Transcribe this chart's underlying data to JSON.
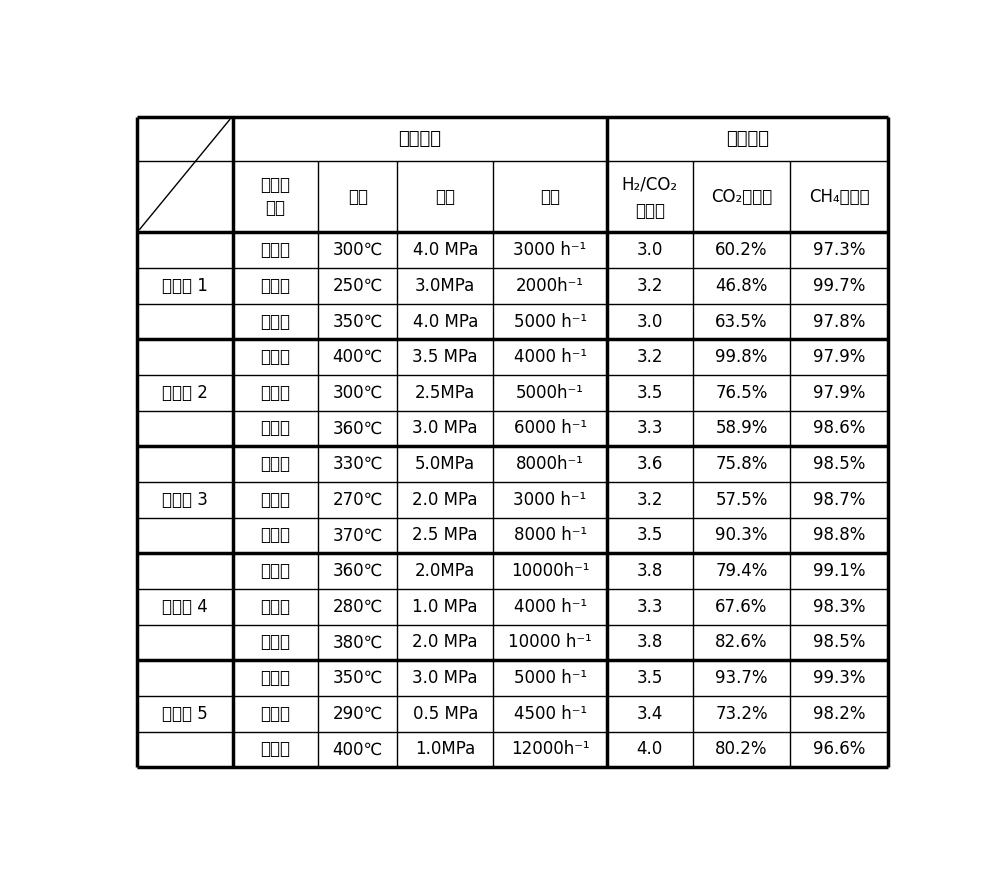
{
  "examples": [
    {
      "name": "实施例 1",
      "rows": [
        [
          "固定床",
          "300℃",
          "4.0 MPa",
          "3000 h⁻¹",
          "3.0",
          "60.2%",
          "97.3%"
        ],
        [
          "浆态床",
          "250℃",
          "3.0MPa",
          "2000h⁻¹",
          "3.2",
          "46.8%",
          "99.7%"
        ],
        [
          "流化床",
          "350℃",
          "4.0 MPa",
          "5000 h⁻¹",
          "3.0",
          "63.5%",
          "97.8%"
        ]
      ]
    },
    {
      "name": "实施例 2",
      "rows": [
        [
          "固定床",
          "400℃",
          "3.5 MPa",
          "4000 h⁻¹",
          "3.2",
          "99.8%",
          "97.9%"
        ],
        [
          "浆态床",
          "300℃",
          "2.5MPa",
          "5000h⁻¹",
          "3.5",
          "76.5%",
          "97.9%"
        ],
        [
          "流化床",
          "360℃",
          "3.0 MPa",
          "6000 h⁻¹",
          "3.3",
          "58.9%",
          "98.6%"
        ]
      ]
    },
    {
      "name": "实施例 3",
      "rows": [
        [
          "固定床",
          "330℃",
          "5.0MPa",
          "8000h⁻¹",
          "3.6",
          "75.8%",
          "98.5%"
        ],
        [
          "浆态床",
          "270℃",
          "2.0 MPa",
          "3000 h⁻¹",
          "3.2",
          "57.5%",
          "98.7%"
        ],
        [
          "流化床",
          "370℃",
          "2.5 MPa",
          "8000 h⁻¹",
          "3.5",
          "90.3%",
          "98.8%"
        ]
      ]
    },
    {
      "name": "实施例 4",
      "rows": [
        [
          "固定床",
          "360℃",
          "2.0MPa",
          "10000h⁻¹",
          "3.8",
          "79.4%",
          "99.1%"
        ],
        [
          "浆态床",
          "280℃",
          "1.0 MPa",
          "4000 h⁻¹",
          "3.3",
          "67.6%",
          "98.3%"
        ],
        [
          "流化床",
          "380℃",
          "2.0 MPa",
          "10000 h⁻¹",
          "3.8",
          "82.6%",
          "98.5%"
        ]
      ]
    },
    {
      "name": "实施例 5",
      "rows": [
        [
          "固定床",
          "350℃",
          "3.0 MPa",
          "5000 h⁻¹",
          "3.5",
          "93.7%",
          "99.3%"
        ],
        [
          "浆态床",
          "290℃",
          "0.5 MPa",
          "4500 h⁻¹",
          "3.4",
          "73.2%",
          "98.2%"
        ],
        [
          "流化床",
          "400℃",
          "1.0MPa",
          "12000h⁻¹",
          "4.0",
          "80.2%",
          "96.6%"
        ]
      ]
    }
  ],
  "bg_color": "#ffffff",
  "line_color": "#000000",
  "text_color": "#000000",
  "font_size": 12
}
